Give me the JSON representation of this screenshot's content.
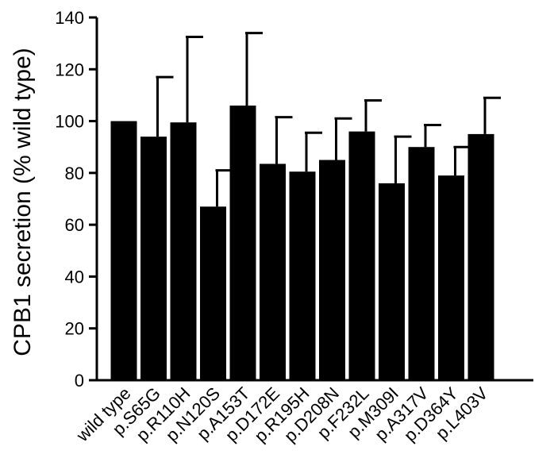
{
  "chart_data": {
    "type": "bar",
    "title": "",
    "xlabel": "",
    "ylabel": "CPB1 secretion (% wild type)",
    "ylim": [
      0,
      140
    ],
    "yticks": [
      0,
      20,
      40,
      60,
      80,
      100,
      120,
      140
    ],
    "categories": [
      "wild type",
      "p.S65G",
      "p.R110H",
      "p.N120S",
      "p.A153T",
      "p.D172E",
      "p.R195H",
      "p.D208N",
      "p.F232L",
      "p.M309I",
      "p.A317V",
      "p.D364Y",
      "p.L403V"
    ],
    "values": [
      100,
      94,
      99.5,
      67,
      106,
      83.5,
      80.5,
      85,
      96,
      76,
      90,
      79,
      95
    ],
    "errors": [
      0,
      23,
      33,
      14,
      28,
      18,
      15,
      16,
      12,
      18,
      8.5,
      11,
      14
    ],
    "bar_color": "#000000",
    "grid": false,
    "legend": "none"
  }
}
